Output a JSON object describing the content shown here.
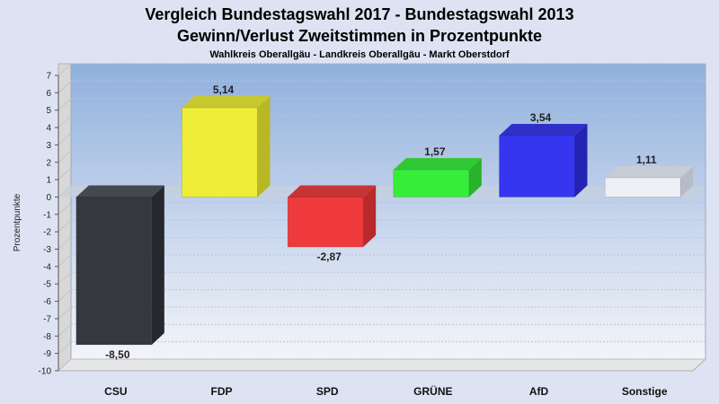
{
  "chart_data": {
    "type": "bar",
    "title": "Vergleich Bundestagswahl 2017 - Bundestagswahl 2013",
    "subtitle": "Gewinn/Verlust Zweitstimmen in Prozentpunkte",
    "subsubtitle": "Wahlkreis Oberallgäu - Landkreis Oberallgäu - Markt Oberstdorf",
    "ylabel": "Prozentpunkte",
    "xlabel": "",
    "ylim": [
      -10,
      7
    ],
    "yticks": [
      7,
      6,
      5,
      4,
      3,
      2,
      1,
      0,
      -1,
      -2,
      -3,
      -4,
      -5,
      -6,
      -7,
      -8,
      -9,
      -10
    ],
    "grid": true,
    "categories": [
      "CSU",
      "FDP",
      "SPD",
      "GRÜNE",
      "AfD",
      "Sonstige"
    ],
    "values": [
      -8.5,
      5.14,
      -2.87,
      1.57,
      3.54,
      1.11
    ],
    "value_labels": [
      "-8,50",
      "5,14",
      "-2,87",
      "1,57",
      "3,54",
      "1,11"
    ],
    "colors": [
      "#363840",
      "#eeee38",
      "#ee3a3c",
      "#36ee3a",
      "#3636f0",
      "#eef0f6"
    ],
    "side_colors": [
      "#26282e",
      "#b8b826",
      "#b82a2c",
      "#26b42a",
      "#2424b2",
      "#b8bcc6"
    ],
    "top_colors": [
      "#46484f",
      "#c8c830",
      "#c83436",
      "#30c834",
      "#3030c8",
      "#c8ccd6"
    ]
  }
}
